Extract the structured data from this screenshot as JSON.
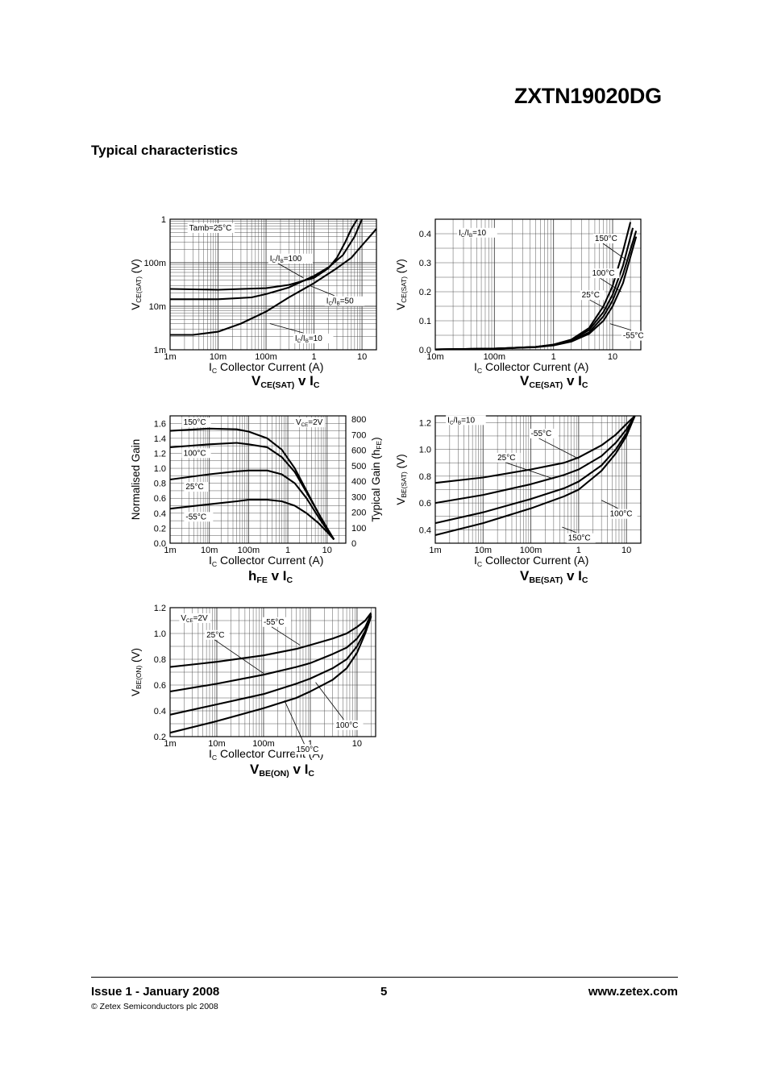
{
  "header": {
    "part_number": "ZXTN19020DG",
    "section_title": "Typical characteristics"
  },
  "footer": {
    "issue": "Issue 1 - January 2008",
    "page": "5",
    "website": "www.zetex.com",
    "copyright": "© Zetex Semiconductors plc 2008"
  },
  "chart_data": [
    {
      "id": "vcesat_ratio",
      "type": "line",
      "x_scale": "log",
      "y_scale": "log",
      "xlim": [
        0.001,
        20
      ],
      "ylim": [
        0.001,
        1
      ],
      "xticks": [
        0.001,
        0.01,
        0.1,
        1,
        10
      ],
      "xtick_labels": [
        "1m",
        "10m",
        "100m",
        "1",
        "10"
      ],
      "yticks": [
        0.001,
        0.01,
        0.1,
        1
      ],
      "ytick_labels": [
        "1m",
        "10m",
        "100m",
        "1"
      ],
      "xlabel": [
        "I",
        "C",
        "Collector Current (A)"
      ],
      "ylabel": [
        "V",
        "CE(SAT)",
        "(V)"
      ],
      "title": [
        "V",
        "CE(SAT)",
        " v I",
        "C"
      ],
      "annotations": [
        {
          "parts": [
            [
              "Tamb=25°C",
              ""
            ]
          ],
          "x": 0.0025,
          "y": 0.55
        },
        {
          "parts": [
            [
              "I",
              ""
            ],
            [
              "C",
              "s"
            ],
            [
              "/I",
              ""
            ],
            [
              "B",
              "s"
            ],
            [
              "=100",
              ""
            ]
          ],
          "x": 0.12,
          "y": 0.11,
          "tx": 0.6,
          "ty": 0.045
        },
        {
          "parts": [
            [
              "I",
              ""
            ],
            [
              "C",
              "s"
            ],
            [
              "/I",
              ""
            ],
            [
              "B",
              "s"
            ],
            [
              "=50",
              ""
            ]
          ],
          "x": 1.8,
          "y": 0.0115,
          "tx": 0.8,
          "ty": 0.03
        },
        {
          "parts": [
            [
              "I",
              ""
            ],
            [
              "C",
              "s"
            ],
            [
              "/I",
              ""
            ],
            [
              "B",
              "s"
            ],
            [
              "=10",
              ""
            ]
          ],
          "x": 0.4,
          "y": 0.0016,
          "tx": 0.12,
          "ty": 0.004
        }
      ],
      "series": [
        {
          "name": "IC/IB=100",
          "x": [
            0.001,
            0.01,
            0.1,
            0.3,
            1,
            2,
            3,
            4.5,
            6,
            8
          ],
          "y": [
            0.025,
            0.024,
            0.026,
            0.031,
            0.045,
            0.075,
            0.13,
            0.3,
            0.6,
            1.0
          ]
        },
        {
          "name": "IC/IB=50",
          "x": [
            0.001,
            0.01,
            0.05,
            0.1,
            0.3,
            1,
            2,
            4,
            7,
            10
          ],
          "y": [
            0.0145,
            0.0145,
            0.016,
            0.019,
            0.027,
            0.05,
            0.078,
            0.15,
            0.4,
            1.0
          ]
        },
        {
          "name": "IC/IB=10",
          "x": [
            0.001,
            0.003,
            0.01,
            0.03,
            0.1,
            0.3,
            1,
            3,
            6,
            10,
            20
          ],
          "y": [
            0.0022,
            0.0022,
            0.0026,
            0.004,
            0.0075,
            0.016,
            0.034,
            0.075,
            0.13,
            0.25,
            0.6
          ]
        }
      ]
    },
    {
      "id": "vcesat_temp",
      "type": "line",
      "x_scale": "log",
      "y_scale": "linear",
      "xlim": [
        0.01,
        30
      ],
      "ylim": [
        0,
        0.45
      ],
      "xticks": [
        0.01,
        0.1,
        1,
        10
      ],
      "xtick_labels": [
        "10m",
        "100m",
        "1",
        "10"
      ],
      "yticks": [
        0,
        0.1,
        0.2,
        0.3,
        0.4
      ],
      "ytick_labels": [
        "0.0",
        "0.1",
        "0.2",
        "0.3",
        "0.4"
      ],
      "xlabel": [
        "I",
        "C",
        "Collector Current (A)"
      ],
      "ylabel": [
        "V",
        "CE(SAT)",
        "(V)"
      ],
      "title": [
        "V",
        "CE(SAT)",
        " v I",
        "C"
      ],
      "annotations": [
        {
          "parts": [
            [
              "I",
              ""
            ],
            [
              "C",
              "s"
            ],
            [
              "/I",
              ""
            ],
            [
              "B",
              "s"
            ],
            [
              "=10",
              ""
            ]
          ],
          "x": 0.025,
          "y": 0.395
        },
        {
          "parts": [
            [
              "150°C",
              ""
            ]
          ],
          "x": 5,
          "y": 0.375,
          "tx": 17,
          "ty": 0.31
        },
        {
          "parts": [
            [
              "100°C",
              ""
            ]
          ],
          "x": 4.5,
          "y": 0.255,
          "tx": 14,
          "ty": 0.2
        },
        {
          "parts": [
            [
              "25°C",
              ""
            ]
          ],
          "x": 3,
          "y": 0.18,
          "tx": 8,
          "ty": 0.14
        },
        {
          "parts": [
            [
              "-55°C",
              ""
            ]
          ],
          "x": 15,
          "y": 0.04,
          "tx": 9,
          "ty": 0.09
        }
      ],
      "series": [
        {
          "name": "150°C",
          "x": [
            0.01,
            0.1,
            0.5,
            1,
            2,
            4,
            7,
            10,
            15,
            20
          ],
          "y": [
            0.001,
            0.004,
            0.01,
            0.018,
            0.035,
            0.075,
            0.15,
            0.22,
            0.34,
            0.44
          ]
        },
        {
          "name": "100°C",
          "x": [
            0.01,
            0.1,
            0.5,
            1,
            2,
            4,
            7,
            10,
            15,
            22
          ],
          "y": [
            0.001,
            0.004,
            0.01,
            0.017,
            0.033,
            0.068,
            0.13,
            0.19,
            0.29,
            0.42
          ]
        },
        {
          "name": "25°C",
          "x": [
            0.01,
            0.1,
            0.5,
            1,
            2,
            4,
            7,
            10,
            15,
            25
          ],
          "y": [
            0.001,
            0.004,
            0.01,
            0.016,
            0.03,
            0.06,
            0.115,
            0.17,
            0.26,
            0.41
          ]
        },
        {
          "name": "-55°C",
          "x": [
            0.01,
            0.1,
            0.5,
            1,
            2,
            4,
            7,
            10,
            15,
            25
          ],
          "y": [
            0.001,
            0.004,
            0.009,
            0.015,
            0.028,
            0.055,
            0.1,
            0.15,
            0.23,
            0.39
          ]
        }
      ]
    },
    {
      "id": "hfe",
      "type": "line",
      "x_scale": "log",
      "y_scale": "linear",
      "xlim": [
        0.001,
        30
      ],
      "ylim": [
        0,
        1.7
      ],
      "xticks": [
        0.001,
        0.01,
        0.1,
        1,
        10
      ],
      "xtick_labels": [
        "1m",
        "10m",
        "100m",
        "1",
        "10"
      ],
      "yticks": [
        0,
        0.2,
        0.4,
        0.6,
        0.8,
        1.0,
        1.2,
        1.4,
        1.6
      ],
      "ytick_labels": [
        "0.0",
        "0.2",
        "0.4",
        "0.6",
        "0.8",
        "1.0",
        "1.2",
        "1.4",
        "1.6"
      ],
      "y2ticks": [
        0,
        100,
        200,
        300,
        400,
        500,
        600,
        700,
        800
      ],
      "y2tick_labels": [
        "0",
        "100",
        "200",
        "300",
        "400",
        "500",
        "600",
        "700",
        "800"
      ],
      "xlabel": [
        "I",
        "C",
        "Collector Current (A)"
      ],
      "ylabel": [
        "Normalised Gain"
      ],
      "y2label": [
        "Typical Gain (h",
        "FE",
        ")"
      ],
      "title": [
        "h",
        "FE",
        " v I",
        "C"
      ],
      "annotations": [
        {
          "parts": [
            [
              "V",
              ""
            ],
            [
              "CE",
              "s"
            ],
            [
              "=2V",
              ""
            ]
          ],
          "x": 1.6,
          "y": 1.58
        },
        {
          "parts": [
            [
              "150°C",
              ""
            ]
          ],
          "x": 0.0022,
          "y": 1.58
        },
        {
          "parts": [
            [
              "100°C",
              ""
            ]
          ],
          "x": 0.0022,
          "y": 1.17
        },
        {
          "parts": [
            [
              "25°C",
              ""
            ]
          ],
          "x": 0.0025,
          "y": 0.72
        },
        {
          "parts": [
            [
              "-55°C",
              ""
            ]
          ],
          "x": 0.0025,
          "y": 0.32
        }
      ],
      "series": [
        {
          "name": "150°C",
          "x": [
            0.001,
            0.01,
            0.05,
            0.1,
            0.3,
            0.7,
            1.5,
            3,
            6,
            10,
            15
          ],
          "y": [
            1.5,
            1.53,
            1.52,
            1.49,
            1.4,
            1.25,
            1.0,
            0.7,
            0.4,
            0.2,
            0.05
          ]
        },
        {
          "name": "100°C",
          "x": [
            0.001,
            0.01,
            0.05,
            0.1,
            0.3,
            0.7,
            1.5,
            3,
            6,
            10,
            15
          ],
          "y": [
            1.28,
            1.32,
            1.34,
            1.32,
            1.28,
            1.15,
            0.95,
            0.68,
            0.4,
            0.2,
            0.05
          ]
        },
        {
          "name": "25°C",
          "x": [
            0.001,
            0.01,
            0.05,
            0.1,
            0.3,
            0.7,
            1.5,
            3,
            6,
            10,
            15
          ],
          "y": [
            0.85,
            0.92,
            0.96,
            0.97,
            0.97,
            0.92,
            0.8,
            0.6,
            0.35,
            0.18,
            0.05
          ]
        },
        {
          "name": "-55°C",
          "x": [
            0.001,
            0.01,
            0.05,
            0.1,
            0.3,
            0.7,
            1.5,
            3,
            6,
            10,
            15
          ],
          "y": [
            0.46,
            0.52,
            0.56,
            0.58,
            0.58,
            0.56,
            0.5,
            0.4,
            0.27,
            0.15,
            0.05
          ]
        }
      ]
    },
    {
      "id": "vbesat",
      "type": "line",
      "x_scale": "log",
      "y_scale": "linear",
      "xlim": [
        0.001,
        20
      ],
      "ylim": [
        0.3,
        1.25
      ],
      "xticks": [
        0.001,
        0.01,
        0.1,
        1,
        10
      ],
      "xtick_labels": [
        "1m",
        "10m",
        "100m",
        "1",
        "10"
      ],
      "yticks": [
        0.4,
        0.6,
        0.8,
        1.0,
        1.2
      ],
      "ytick_labels": [
        "0.4",
        "0.6",
        "0.8",
        "1.0",
        "1.2"
      ],
      "xlabel": [
        "I",
        "C",
        "Collector Current (A)"
      ],
      "ylabel": [
        "V",
        "BE(SAT)",
        "(V)"
      ],
      "title": [
        "V",
        "BE(SAT)",
        " v I",
        "C"
      ],
      "annotations": [
        {
          "parts": [
            [
              "I",
              ""
            ],
            [
              "C",
              "s"
            ],
            [
              "/I",
              ""
            ],
            [
              "B",
              "s"
            ],
            [
              "=10",
              ""
            ]
          ],
          "x": 0.0018,
          "y": 1.2
        },
        {
          "parts": [
            [
              "-55°C",
              ""
            ]
          ],
          "x": 0.1,
          "y": 1.1,
          "tx": 1.0,
          "ty": 0.93
        },
        {
          "parts": [
            [
              "25°C",
              ""
            ]
          ],
          "x": 0.02,
          "y": 0.92,
          "tx": 0.3,
          "ty": 0.78
        },
        {
          "parts": [
            [
              "100°C",
              ""
            ]
          ],
          "x": 4.5,
          "y": 0.5,
          "tx": 3.0,
          "ty": 0.62
        },
        {
          "parts": [
            [
              "150°C",
              ""
            ]
          ],
          "x": 0.6,
          "y": 0.32,
          "tx": 0.45,
          "ty": 0.42
        }
      ],
      "series": [
        {
          "name": "-55°C",
          "x": [
            0.001,
            0.01,
            0.1,
            0.5,
            1,
            3,
            6,
            10,
            15
          ],
          "y": [
            0.75,
            0.79,
            0.85,
            0.9,
            0.94,
            1.03,
            1.11,
            1.19,
            1.25
          ]
        },
        {
          "name": "25°C",
          "x": [
            0.001,
            0.01,
            0.1,
            0.5,
            1,
            3,
            6,
            10,
            15
          ],
          "y": [
            0.6,
            0.66,
            0.74,
            0.81,
            0.85,
            0.95,
            1.05,
            1.15,
            1.25
          ]
        },
        {
          "name": "100°C",
          "x": [
            0.001,
            0.01,
            0.1,
            0.5,
            1,
            3,
            6,
            10,
            15
          ],
          "y": [
            0.45,
            0.53,
            0.63,
            0.71,
            0.76,
            0.88,
            1.0,
            1.12,
            1.25
          ]
        },
        {
          "name": "150°C",
          "x": [
            0.001,
            0.01,
            0.1,
            0.5,
            1,
            3,
            6,
            10,
            15
          ],
          "y": [
            0.36,
            0.45,
            0.56,
            0.65,
            0.7,
            0.84,
            0.97,
            1.1,
            1.25
          ]
        }
      ]
    },
    {
      "id": "vbeon",
      "type": "line",
      "x_scale": "log",
      "y_scale": "linear",
      "xlim": [
        0.001,
        25
      ],
      "ylim": [
        0.2,
        1.2
      ],
      "xticks": [
        0.001,
        0.01,
        0.1,
        1,
        10
      ],
      "xtick_labels": [
        "1m",
        "10m",
        "100m",
        "1",
        "10"
      ],
      "yticks": [
        0.2,
        0.4,
        0.6,
        0.8,
        1.0,
        1.2
      ],
      "ytick_labels": [
        "0.2",
        "0.4",
        "0.6",
        "0.8",
        "1.0",
        "1.2"
      ],
      "xlabel": [
        "I",
        "C",
        "Collector Current (A)"
      ],
      "ylabel": [
        "V",
        "BE(ON)",
        "(V)"
      ],
      "title": [
        "V",
        "BE(ON)",
        " v I",
        "C"
      ],
      "annotations": [
        {
          "parts": [
            [
              "V",
              ""
            ],
            [
              "CE",
              "s"
            ],
            [
              "=2V",
              ""
            ]
          ],
          "x": 0.0017,
          "y": 1.1
        },
        {
          "parts": [
            [
              "-55°C",
              ""
            ]
          ],
          "x": 0.1,
          "y": 1.07,
          "tx": 0.6,
          "ty": 0.91
        },
        {
          "parts": [
            [
              "25°C",
              ""
            ]
          ],
          "x": 0.006,
          "y": 0.97,
          "tx": 0.1,
          "ty": 0.69
        },
        {
          "parts": [
            [
              "100°C",
              ""
            ]
          ],
          "x": 3.5,
          "y": 0.27,
          "tx": 1.3,
          "ty": 0.62
        },
        {
          "parts": [
            [
              "150°C",
              ""
            ]
          ],
          "x": 0.5,
          "y": 0.08,
          "tx": 0.28,
          "ty": 0.48
        }
      ],
      "series": [
        {
          "name": "-55°C",
          "x": [
            0.001,
            0.01,
            0.1,
            0.5,
            1,
            3,
            6,
            10,
            15,
            20
          ],
          "y": [
            0.74,
            0.78,
            0.83,
            0.88,
            0.91,
            0.96,
            1.0,
            1.05,
            1.1,
            1.16
          ]
        },
        {
          "name": "25°C",
          "x": [
            0.001,
            0.01,
            0.1,
            0.5,
            1,
            3,
            6,
            10,
            15,
            20
          ],
          "y": [
            0.55,
            0.61,
            0.68,
            0.74,
            0.77,
            0.84,
            0.89,
            0.96,
            1.05,
            1.15
          ]
        },
        {
          "name": "100°C",
          "x": [
            0.001,
            0.01,
            0.1,
            0.5,
            1,
            3,
            6,
            10,
            15,
            20
          ],
          "y": [
            0.37,
            0.45,
            0.53,
            0.61,
            0.65,
            0.73,
            0.8,
            0.9,
            1.02,
            1.14
          ]
        },
        {
          "name": "150°C",
          "x": [
            0.001,
            0.01,
            0.1,
            0.5,
            1,
            3,
            6,
            10,
            15,
            20
          ],
          "y": [
            0.23,
            0.32,
            0.42,
            0.5,
            0.55,
            0.64,
            0.73,
            0.85,
            1.0,
            1.13
          ]
        }
      ]
    }
  ]
}
